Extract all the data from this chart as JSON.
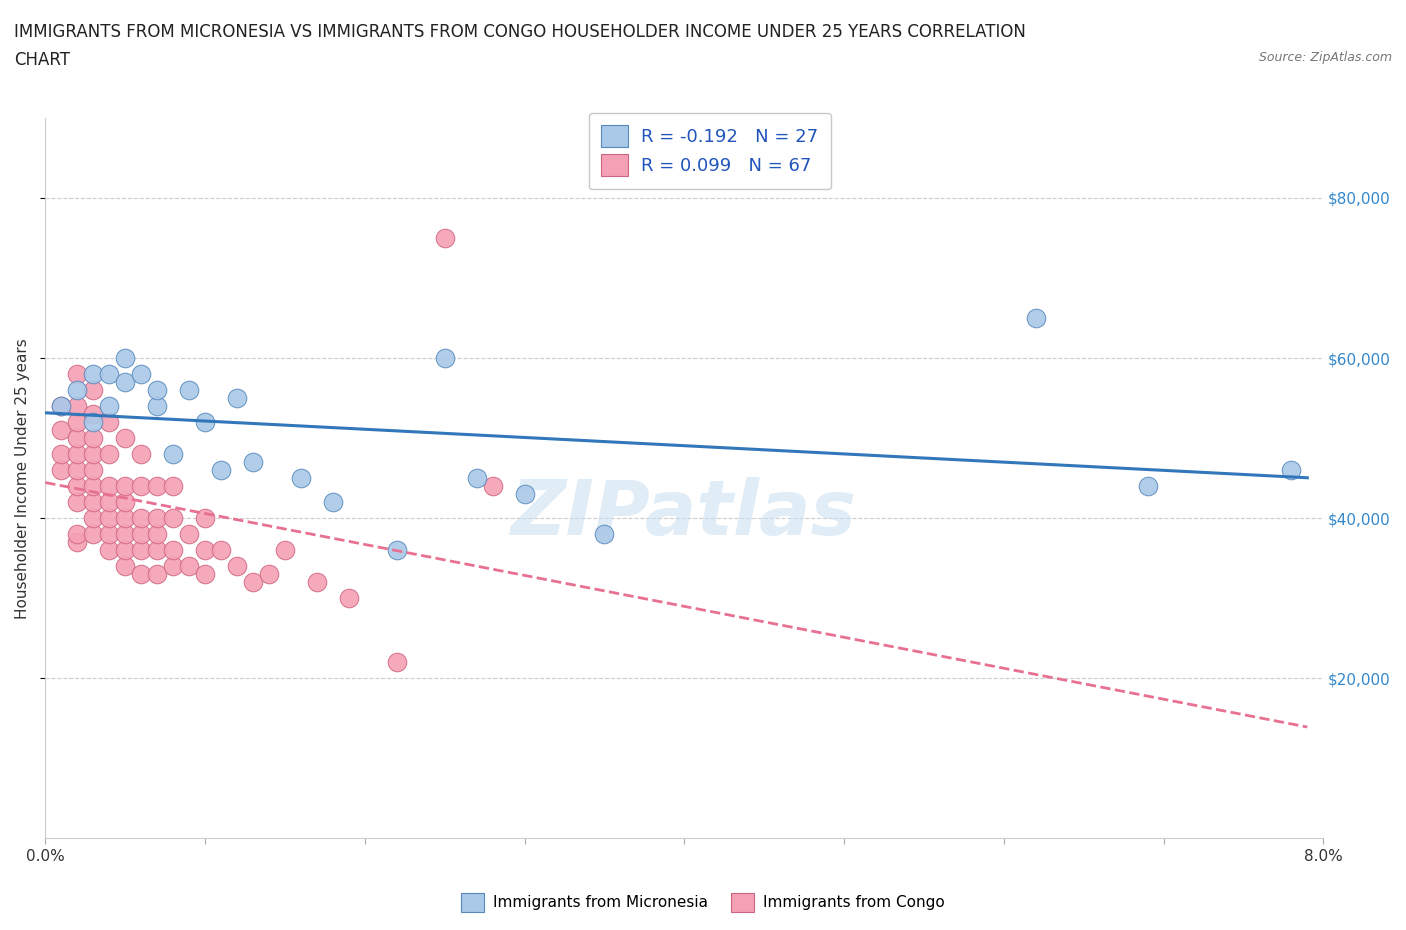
{
  "title_line1": "IMMIGRANTS FROM MICRONESIA VS IMMIGRANTS FROM CONGO HOUSEHOLDER INCOME UNDER 25 YEARS CORRELATION",
  "title_line2": "CHART",
  "source": "Source: ZipAtlas.com",
  "ylabel": "Householder Income Under 25 years",
  "xlim": [
    0.0,
    0.08
  ],
  "ylim": [
    0,
    90000
  ],
  "xticks": [
    0.0,
    0.01,
    0.02,
    0.03,
    0.04,
    0.05,
    0.06,
    0.07,
    0.08
  ],
  "ytick_labels": [
    "$20,000",
    "$40,000",
    "$60,000",
    "$80,000"
  ],
  "ytick_values": [
    20000,
    40000,
    60000,
    80000
  ],
  "micronesia_color": "#aac8e8",
  "micronesia_edge": "#5588bb",
  "congo_color": "#f5a0b4",
  "congo_edge": "#cc6680",
  "trendline_micronesia_color": "#3377bb",
  "trendline_congo_color": "#e87090",
  "R_micronesia": -0.192,
  "N_micronesia": 27,
  "R_congo": 0.099,
  "N_congo": 67,
  "micronesia_x": [
    0.001,
    0.002,
    0.003,
    0.003,
    0.004,
    0.004,
    0.005,
    0.005,
    0.006,
    0.007,
    0.007,
    0.008,
    0.009,
    0.01,
    0.011,
    0.012,
    0.013,
    0.016,
    0.018,
    0.022,
    0.025,
    0.027,
    0.03,
    0.035,
    0.062,
    0.069,
    0.078
  ],
  "micronesia_y": [
    54000,
    56000,
    52000,
    58000,
    54000,
    58000,
    57000,
    60000,
    58000,
    54000,
    56000,
    48000,
    56000,
    52000,
    46000,
    55000,
    47000,
    45000,
    42000,
    36000,
    60000,
    45000,
    43000,
    38000,
    65000,
    44000,
    46000
  ],
  "congo_x": [
    0.001,
    0.001,
    0.001,
    0.001,
    0.002,
    0.002,
    0.002,
    0.002,
    0.002,
    0.002,
    0.002,
    0.002,
    0.002,
    0.002,
    0.003,
    0.003,
    0.003,
    0.003,
    0.003,
    0.003,
    0.003,
    0.003,
    0.003,
    0.004,
    0.004,
    0.004,
    0.004,
    0.004,
    0.004,
    0.004,
    0.005,
    0.005,
    0.005,
    0.005,
    0.005,
    0.005,
    0.005,
    0.006,
    0.006,
    0.006,
    0.006,
    0.006,
    0.006,
    0.007,
    0.007,
    0.007,
    0.007,
    0.007,
    0.008,
    0.008,
    0.008,
    0.008,
    0.009,
    0.009,
    0.01,
    0.01,
    0.01,
    0.011,
    0.012,
    0.013,
    0.014,
    0.015,
    0.017,
    0.019,
    0.022,
    0.025,
    0.028
  ],
  "congo_y": [
    46000,
    48000,
    51000,
    54000,
    37000,
    38000,
    42000,
    44000,
    46000,
    48000,
    50000,
    52000,
    54000,
    58000,
    38000,
    40000,
    42000,
    44000,
    46000,
    48000,
    50000,
    53000,
    56000,
    36000,
    38000,
    40000,
    42000,
    44000,
    48000,
    52000,
    34000,
    36000,
    38000,
    40000,
    42000,
    44000,
    50000,
    33000,
    36000,
    38000,
    40000,
    44000,
    48000,
    33000,
    36000,
    38000,
    40000,
    44000,
    34000,
    36000,
    40000,
    44000,
    34000,
    38000,
    33000,
    36000,
    40000,
    36000,
    34000,
    32000,
    33000,
    36000,
    32000,
    30000,
    22000,
    75000,
    44000
  ],
  "watermark": "ZIPatlas",
  "background_color": "#ffffff",
  "title_fontsize": 12,
  "axis_label_fontsize": 11,
  "tick_fontsize": 11,
  "legend_fontsize": 13,
  "right_tick_color": "#3388cc"
}
